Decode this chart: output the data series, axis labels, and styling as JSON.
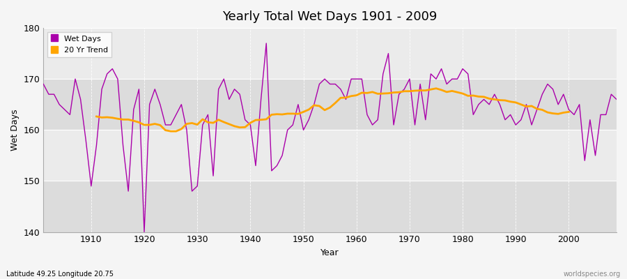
{
  "title": "Yearly Total Wet Days 1901 - 2009",
  "xlabel": "Year",
  "ylabel": "Wet Days",
  "subtitle_left": "Latitude 49.25 Longitude 20.75",
  "subtitle_right": "worldspecies.org",
  "line_color": "#AA00AA",
  "trend_color": "#FFA500",
  "bg_color": "#F5F5F5",
  "plot_bg_color": "#F0F0F0",
  "band_color_light": "#EBEBEB",
  "band_color_dark": "#DCDCDC",
  "ylim": [
    140,
    180
  ],
  "yticks": [
    140,
    150,
    160,
    170,
    180
  ],
  "xticks": [
    1910,
    1920,
    1930,
    1940,
    1950,
    1960,
    1970,
    1980,
    1990,
    2000
  ],
  "years": [
    1901,
    1902,
    1903,
    1904,
    1905,
    1906,
    1907,
    1908,
    1909,
    1910,
    1911,
    1912,
    1913,
    1914,
    1915,
    1916,
    1917,
    1918,
    1919,
    1920,
    1921,
    1922,
    1923,
    1924,
    1925,
    1926,
    1927,
    1928,
    1929,
    1930,
    1931,
    1932,
    1933,
    1934,
    1935,
    1936,
    1937,
    1938,
    1939,
    1940,
    1941,
    1942,
    1943,
    1944,
    1945,
    1946,
    1947,
    1948,
    1949,
    1950,
    1951,
    1952,
    1953,
    1954,
    1955,
    1956,
    1957,
    1958,
    1959,
    1960,
    1961,
    1962,
    1963,
    1964,
    1965,
    1966,
    1967,
    1968,
    1969,
    1970,
    1971,
    1972,
    1973,
    1974,
    1975,
    1976,
    1977,
    1978,
    1979,
    1980,
    1981,
    1982,
    1983,
    1984,
    1985,
    1986,
    1987,
    1988,
    1989,
    1990,
    1991,
    1992,
    1993,
    1994,
    1995,
    1996,
    1997,
    1998,
    1999,
    2000,
    2001,
    2002,
    2003,
    2004,
    2005,
    2006,
    2007,
    2008,
    2009
  ],
  "wet_days": [
    169,
    167,
    167,
    165,
    164,
    163,
    170,
    166,
    158,
    149,
    157,
    168,
    171,
    172,
    170,
    157,
    148,
    164,
    168,
    140,
    165,
    168,
    165,
    161,
    161,
    163,
    165,
    160,
    148,
    149,
    161,
    163,
    151,
    168,
    170,
    166,
    168,
    167,
    162,
    161,
    153,
    166,
    177,
    152,
    153,
    155,
    160,
    161,
    165,
    160,
    162,
    165,
    169,
    170,
    169,
    169,
    168,
    166,
    170,
    170,
    170,
    163,
    161,
    162,
    171,
    175,
    161,
    167,
    168,
    170,
    161,
    169,
    162,
    171,
    170,
    172,
    169,
    170,
    170,
    172,
    171,
    163,
    165,
    166,
    165,
    167,
    165,
    162,
    163,
    161,
    162,
    165,
    161,
    164,
    167,
    169,
    168,
    165,
    167,
    164,
    163,
    165,
    154,
    162,
    155,
    163,
    163,
    167,
    166
  ]
}
